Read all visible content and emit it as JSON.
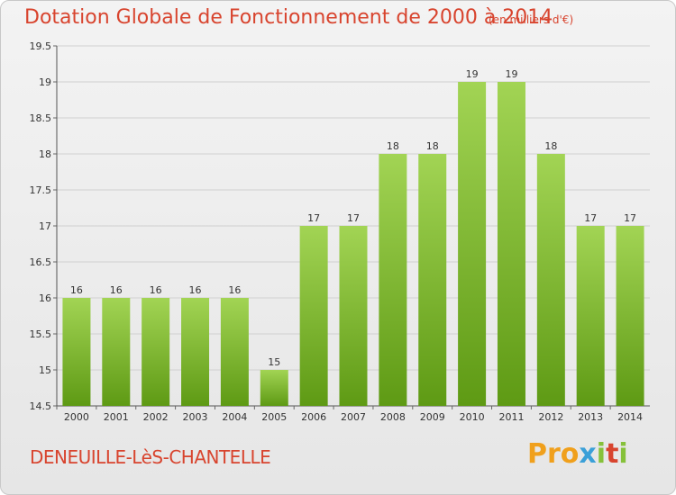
{
  "header": {
    "title": "Dotation Globale de Fonctionnement de 2000 à 2014",
    "subtitle": "(en milliers d'€)"
  },
  "footer": {
    "commune": "DENEUILLE-LèS-CHANTELLE",
    "logo_letters": [
      "P",
      "r",
      "o",
      "x",
      "i",
      "t",
      "i"
    ],
    "logo_colors": [
      "#f0a01c",
      "#f0a01c",
      "#f0a01c",
      "#3ba0d8",
      "#86c13a",
      "#d8442e",
      "#86c13a"
    ]
  },
  "chart_data": {
    "type": "bar",
    "title": "Dotation Globale de Fonctionnement de 2000 à 2014",
    "subtitle": "(en milliers d'€)",
    "xlabel": "",
    "ylabel": "",
    "categories": [
      "2000",
      "2001",
      "2002",
      "2003",
      "2004",
      "2005",
      "2006",
      "2007",
      "2008",
      "2009",
      "2010",
      "2011",
      "2012",
      "2013",
      "2014"
    ],
    "values": [
      16,
      16,
      16,
      16,
      16,
      15,
      17,
      17,
      18,
      18,
      19,
      19,
      18,
      17,
      17
    ],
    "value_labels": [
      "16",
      "16",
      "16",
      "16",
      "16",
      "15",
      "17",
      "17",
      "18",
      "18",
      "19",
      "19",
      "18",
      "17",
      "17"
    ],
    "ylim": [
      14.5,
      19.5
    ],
    "yticks": [
      14.5,
      15,
      15.5,
      16,
      16.5,
      17,
      17.5,
      18,
      18.5,
      19,
      19.5
    ],
    "ytick_labels": [
      "14.5",
      "15",
      "15.5",
      "16",
      "16.5",
      "17",
      "17.5",
      "18",
      "18.5",
      "19",
      "19.5"
    ],
    "grid": true,
    "bar_color_top": "#a2d454",
    "bar_color_bottom": "#5e9a14"
  }
}
